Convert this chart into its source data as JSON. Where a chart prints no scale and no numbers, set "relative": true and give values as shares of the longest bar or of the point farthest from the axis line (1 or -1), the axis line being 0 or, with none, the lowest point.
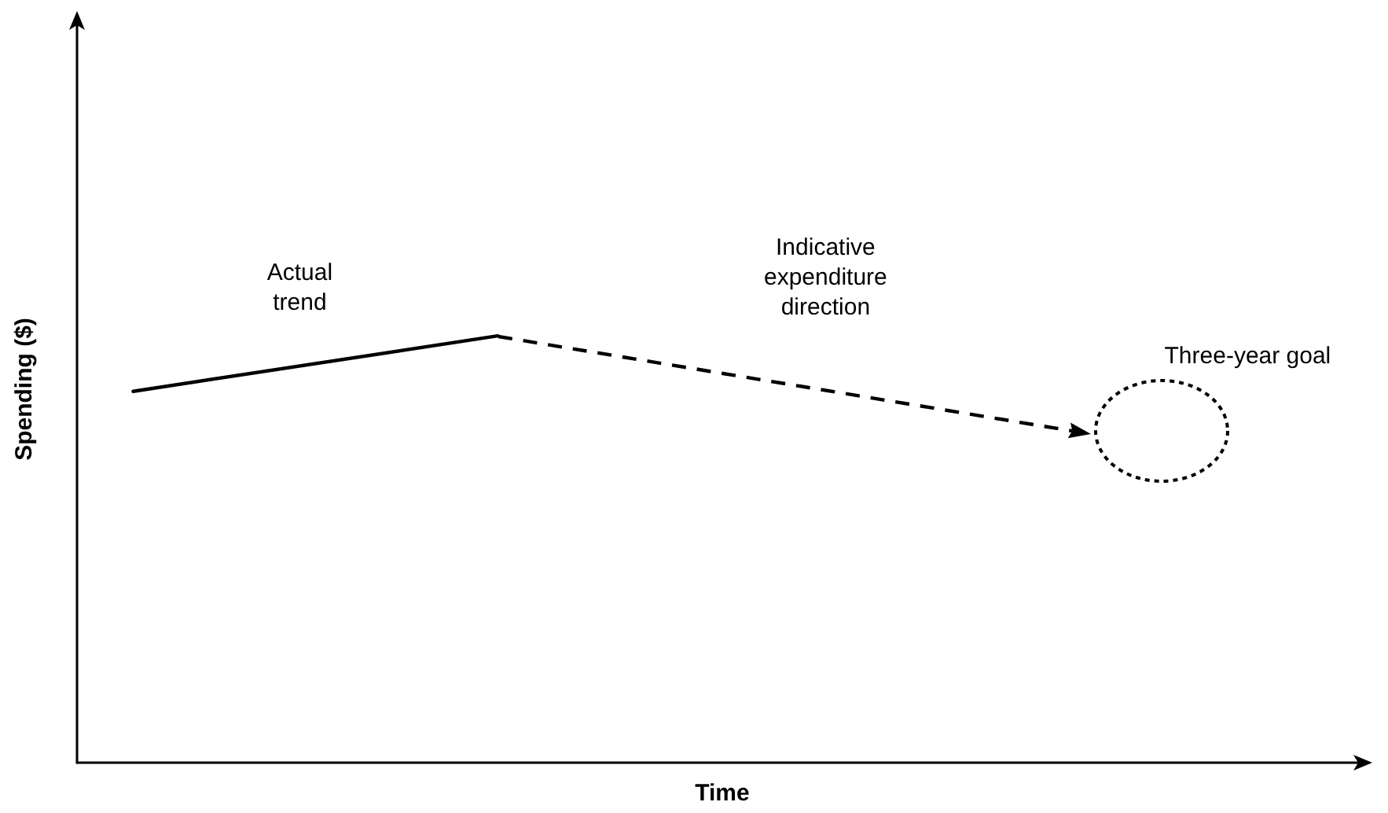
{
  "chart_data": {
    "type": "line",
    "relative": true,
    "xlabel": "Time",
    "ylabel": "Spending ($)",
    "marker": "none",
    "categories": [
      null,
      null,
      null,
      null,
      null,
      null,
      null,
      null,
      null,
      null,
      null,
      null,
      null,
      null,
      null,
      null,
      null,
      null,
      null,
      null,
      null,
      null,
      null,
      null,
      null,
      null,
      null,
      null,
      null,
      null,
      null,
      null,
      null,
      null,
      null,
      null,
      null,
      null,
      null,
      null,
      null,
      null,
      null,
      null,
      null,
      null,
      null
    ],
    "series": [
      {
        "name": "Actual trend",
        "color": "#000000",
        "line_style": "solid",
        "values": [
          null,
          null,
          0.87,
          null,
          null,
          null,
          null,
          null,
          null,
          null,
          null,
          null,
          null,
          null,
          null,
          1,
          null,
          null,
          null,
          null,
          null,
          null,
          null,
          null,
          null,
          null,
          null,
          null,
          null,
          null,
          null,
          null,
          null,
          null,
          null,
          null,
          null,
          null,
          null,
          null,
          null,
          null,
          null,
          null,
          null,
          null,
          null
        ]
      }
    ],
    "annotations": [
      "Indicative expenditure direction",
      "Three-year goal"
    ]
  }
}
